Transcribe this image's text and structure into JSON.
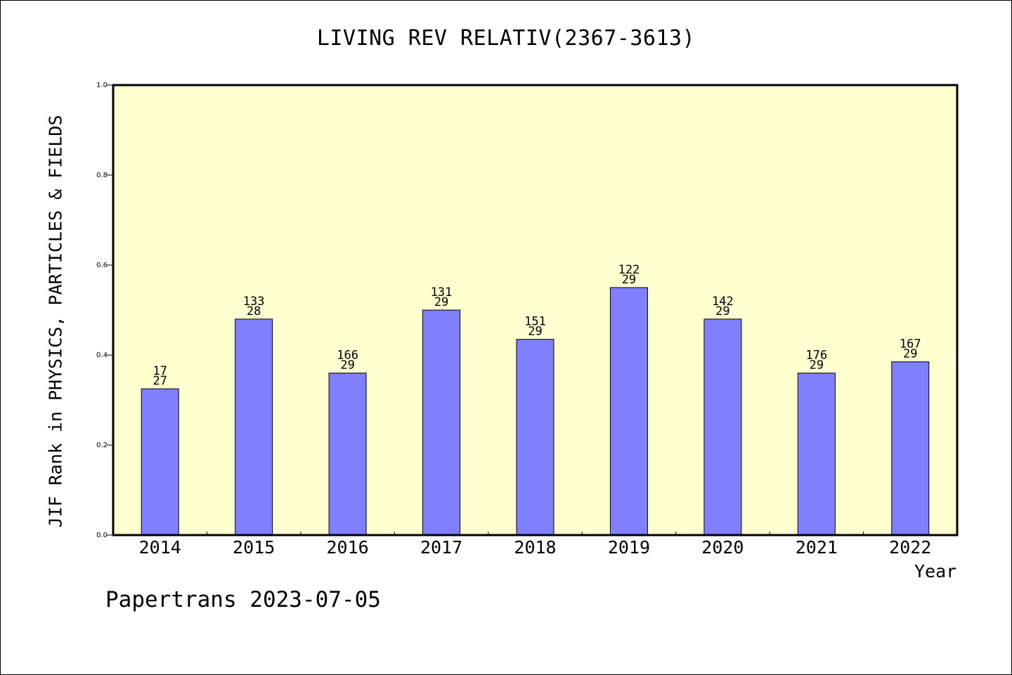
{
  "title": "LIVING REV RELATIV(2367-3613)",
  "ylabel": "JIF Rank in PHYSICS, PARTICLES & FIELDS",
  "xlabel": "Year",
  "footer": "Papertrans 2023-07-05",
  "colors": {
    "bar": "#8080ff",
    "plot_background": "#ffffd0",
    "axis": "#000000"
  },
  "chart_data": {
    "type": "bar",
    "categories": [
      "2014",
      "2015",
      "2016",
      "2017",
      "2018",
      "2019",
      "2020",
      "2021",
      "2022"
    ],
    "values": [
      0.325,
      0.48,
      0.36,
      0.5,
      0.435,
      0.55,
      0.48,
      0.36,
      0.385
    ],
    "data_labels": [
      [
        "17",
        "27"
      ],
      [
        "133",
        "28"
      ],
      [
        "166",
        "29"
      ],
      [
        "131",
        "29"
      ],
      [
        "151",
        "29"
      ],
      [
        "122",
        "29"
      ],
      [
        "142",
        "29"
      ],
      [
        "176",
        "29"
      ],
      [
        "167",
        "29"
      ]
    ],
    "ylim": [
      0,
      1
    ],
    "yticks": [
      "0.0",
      "0.2",
      "0.4",
      "0.6",
      "0.8",
      "1.0"
    ],
    "grid": false,
    "legend": "none"
  }
}
